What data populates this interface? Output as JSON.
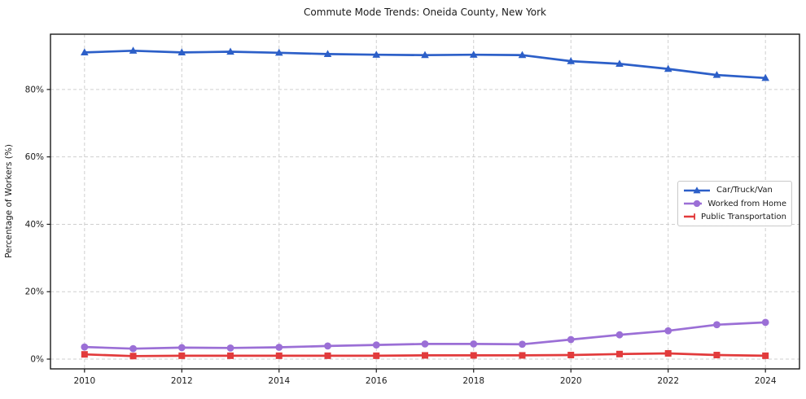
{
  "figure": {
    "background": "#ffffff",
    "text_color": "#1a1a1a",
    "grid_color": "#cfcfcf"
  },
  "chart_data": {
    "type": "line",
    "title": "Commute Mode Trends: Oneida County, New York",
    "xlabel": "",
    "ylabel": "Percentage of Workers (%)",
    "x": [
      2010,
      2011,
      2012,
      2013,
      2014,
      2015,
      2016,
      2017,
      2018,
      2019,
      2020,
      2021,
      2022,
      2023,
      2024
    ],
    "series": [
      {
        "name": "Car/Truck/Van",
        "color": "#2c5fc8",
        "marker": "triangle-up",
        "values": [
          91.0,
          91.5,
          91.0,
          91.2,
          90.9,
          90.5,
          90.3,
          90.2,
          90.3,
          90.2,
          88.4,
          87.6,
          86.1,
          84.3,
          83.4
        ]
      },
      {
        "name": "Worked from Home",
        "color": "#9b6fd6",
        "marker": "circle",
        "values": [
          3.6,
          3.1,
          3.4,
          3.3,
          3.5,
          3.9,
          4.2,
          4.5,
          4.5,
          4.4,
          5.8,
          7.2,
          8.4,
          10.2,
          10.9
        ]
      },
      {
        "name": "Public Transportation",
        "color": "#e23b3c",
        "marker": "square",
        "values": [
          1.4,
          0.9,
          1.0,
          1.0,
          1.0,
          1.0,
          1.0,
          1.1,
          1.1,
          1.1,
          1.2,
          1.5,
          1.7,
          1.2,
          1.0
        ]
      }
    ],
    "xlim": [
      2009.3,
      2024.7
    ],
    "ylim": [
      -2.9,
      96.4
    ],
    "xticks": [
      2010,
      2012,
      2014,
      2016,
      2018,
      2020,
      2022,
      2024
    ],
    "xtick_labels": [
      "2010",
      "2012",
      "2014",
      "2016",
      "2018",
      "2020",
      "2022",
      "2024"
    ],
    "yticks": [
      0,
      20,
      40,
      60,
      80
    ],
    "ytick_labels": [
      "0%",
      "20%",
      "40%",
      "60%",
      "80%"
    ],
    "grid": true,
    "grid_style": "dashed",
    "legend_position": "center right"
  }
}
